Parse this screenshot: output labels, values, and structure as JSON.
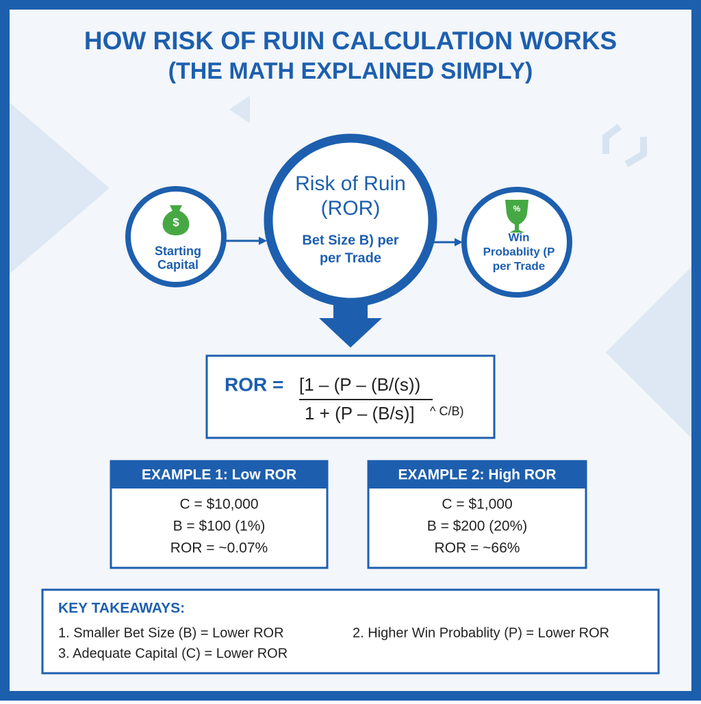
{
  "header": {
    "title": "HOW RISK OF RUIN CALCULATION WORKS",
    "subtitle": "(THE MATH EXPLAINED SIMPLY)"
  },
  "nodes": [
    {
      "icon": "$",
      "lines": [
        "Starting",
        "Capital"
      ]
    },
    {
      "heading": [
        "Risk of Ruin",
        "(ROR)"
      ],
      "lines": [
        "Bet Size B) per",
        "per Trade"
      ]
    },
    {
      "icon": "%",
      "lines": [
        "Win",
        "Probablity (P",
        "per Trade"
      ]
    }
  ],
  "formula": {
    "lhs": "ROR =",
    "numerator": "[1 – (P – (B/(s))",
    "denominator": "1 + (P – (B/s)]",
    "exponent": "^ C/B)"
  },
  "examples": [
    {
      "title": "EXAMPLE 1: Low ROR",
      "lines": [
        "C = $10,000",
        "B = $100 (1%)",
        "ROR = ~0.07%"
      ]
    },
    {
      "title": "EXAMPLE 2: High ROR",
      "lines": [
        "C = $1,000",
        "B = $200 (20%)",
        "ROR = ~66%"
      ]
    }
  ],
  "takeaways": {
    "title": "KEY TAKEAWAYS:",
    "items": [
      "1. Smaller Bet Size (B) = Lower ROR",
      "2. Higher Win Probablity (P) = Lower ROR",
      "3. Adequate Capital (C) = Lower ROR"
    ]
  }
}
